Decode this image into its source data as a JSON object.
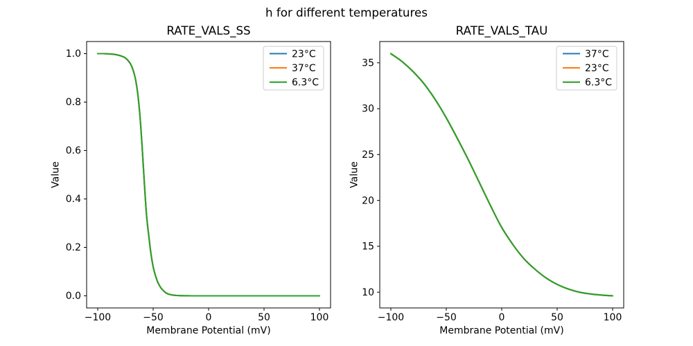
{
  "figure": {
    "suptitle": "h for different temperatures",
    "background": "#ffffff",
    "text_color": "#000000",
    "accent_colors": {
      "blue": "#1f77b4",
      "orange": "#ff7f0e",
      "green": "#2ca02c"
    }
  },
  "chart_data": [
    {
      "type": "line",
      "title": "RATE_VALS_SS",
      "xlabel": "Membrane Potential (mV)",
      "ylabel": "Value",
      "xlim": [
        -110,
        110
      ],
      "ylim": [
        -0.05,
        1.05
      ],
      "grid": false,
      "xticks": {
        "values": [
          -100,
          -50,
          0,
          50,
          100
        ],
        "labels": [
          "−100",
          "−50",
          "0",
          "50",
          "100"
        ]
      },
      "yticks": {
        "values": [
          0.0,
          0.2,
          0.4,
          0.6,
          0.8,
          1.0
        ],
        "labels": [
          "0.0",
          "0.2",
          "0.4",
          "0.6",
          "0.8",
          "1.0"
        ]
      },
      "legend": {
        "position": "upper right",
        "entries": [
          {
            "label": "23°C",
            "color": "#1f77b4"
          },
          {
            "label": "37°C",
            "color": "#ff7f0e"
          },
          {
            "label": "6.3°C",
            "color": "#2ca02c"
          }
        ]
      },
      "note": "All three temperature curves overlap exactly; only the last-drawn green (6.3°C) curve is visible.",
      "x": [
        -100,
        -95,
        -90,
        -85,
        -80,
        -78,
        -76,
        -74,
        -72,
        -70,
        -68,
        -66,
        -64,
        -62,
        -60,
        -58,
        -56,
        -54,
        -52,
        -50,
        -48,
        -46,
        -44,
        -42,
        -40,
        -38,
        -36,
        -34,
        -32,
        -30,
        -28,
        -26,
        -24,
        -22,
        -20,
        -15,
        -10,
        -5,
        0,
        10,
        20,
        30,
        40,
        50,
        60,
        70,
        80,
        90,
        100
      ],
      "y_shared": [
        1.0,
        1.0,
        0.999,
        0.997,
        0.992,
        0.989,
        0.985,
        0.978,
        0.968,
        0.954,
        0.931,
        0.896,
        0.838,
        0.748,
        0.62,
        0.47,
        0.335,
        0.25,
        0.175,
        0.12,
        0.085,
        0.058,
        0.04,
        0.027,
        0.018,
        0.011,
        0.007,
        0.0045,
        0.003,
        0.002,
        0.0013,
        0.0009,
        0.0006,
        0.0004,
        0.0003,
        0.0001,
        0.0,
        0.0,
        0.0,
        0.0,
        0.0,
        0.0,
        0.0,
        0.0,
        0.0,
        0.0,
        0.0,
        0.0,
        0.0
      ],
      "series": [
        {
          "name": "23°C",
          "color": "#1f77b4"
        },
        {
          "name": "37°C",
          "color": "#ff7f0e"
        },
        {
          "name": "6.3°C",
          "color": "#2ca02c"
        }
      ]
    },
    {
      "type": "line",
      "title": "RATE_VALS_TAU",
      "xlabel": "Membrane Potential (mV)",
      "ylabel": "Value",
      "xlim": [
        -110,
        110
      ],
      "ylim": [
        8.28,
        37.32
      ],
      "grid": false,
      "xticks": {
        "values": [
          -100,
          -50,
          0,
          50,
          100
        ],
        "labels": [
          "−100",
          "−50",
          "0",
          "50",
          "100"
        ]
      },
      "yticks": {
        "values": [
          10,
          15,
          20,
          25,
          30,
          35
        ],
        "labels": [
          "10",
          "15",
          "20",
          "25",
          "30",
          "35"
        ]
      },
      "legend": {
        "position": "upper right",
        "entries": [
          {
            "label": "37°C",
            "color": "#1f77b4"
          },
          {
            "label": "23°C",
            "color": "#ff7f0e"
          },
          {
            "label": "6.3°C",
            "color": "#2ca02c"
          }
        ]
      },
      "note": "All three temperature curves overlap exactly; only the last-drawn green (6.3°C) curve is visible.",
      "x": [
        -100,
        -90,
        -80,
        -70,
        -60,
        -50,
        -40,
        -30,
        -20,
        -10,
        0,
        10,
        20,
        30,
        40,
        50,
        60,
        70,
        80,
        90,
        100
      ],
      "y_shared": [
        36.0,
        35.15,
        34.05,
        32.7,
        31.0,
        29.0,
        26.75,
        24.4,
        21.9,
        19.4,
        17.05,
        15.2,
        13.65,
        12.5,
        11.55,
        10.85,
        10.35,
        10.0,
        9.8,
        9.68,
        9.6
      ],
      "series": [
        {
          "name": "37°C",
          "color": "#1f77b4"
        },
        {
          "name": "23°C",
          "color": "#ff7f0e"
        },
        {
          "name": "6.3°C",
          "color": "#2ca02c"
        }
      ]
    }
  ]
}
